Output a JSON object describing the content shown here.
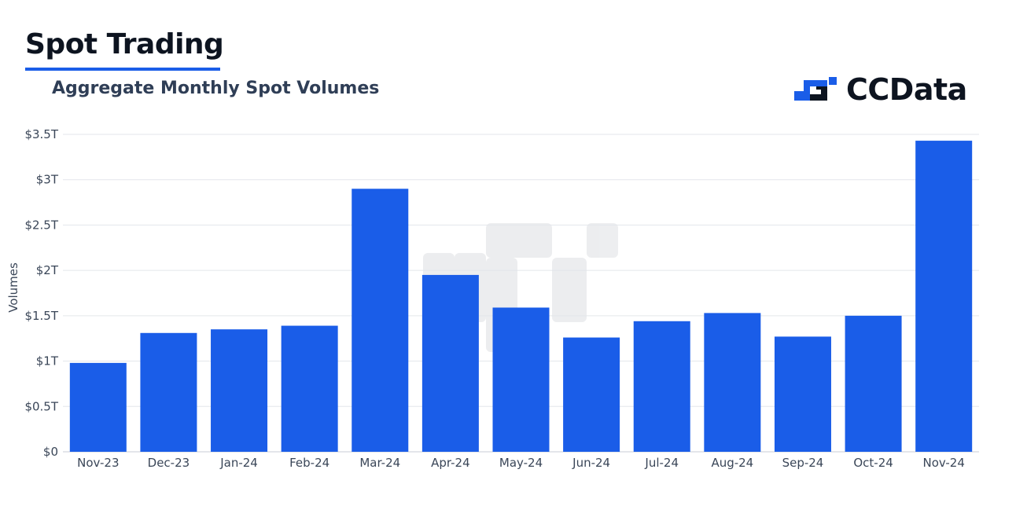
{
  "header": {
    "title": "Spot Trading"
  },
  "chart_title": "Aggregate Monthly Spot Volumes",
  "brand": {
    "name": "CCData",
    "logo_icon": "ccdata-logo-icon",
    "accent": "#1a5de8",
    "dark": "#0d1420"
  },
  "chart_data": {
    "type": "bar",
    "title": "Aggregate Monthly Spot Volumes",
    "xlabel": "",
    "ylabel": "Volumes",
    "categories": [
      "Nov-23",
      "Dec-23",
      "Jan-24",
      "Feb-24",
      "Mar-24",
      "Apr-24",
      "May-24",
      "Jun-24",
      "Jul-24",
      "Aug-24",
      "Sep-24",
      "Oct-24",
      "Nov-24"
    ],
    "values": [
      0.98,
      1.31,
      1.35,
      1.39,
      2.9,
      1.95,
      1.59,
      1.26,
      1.44,
      1.53,
      1.27,
      1.5,
      3.43
    ],
    "unit": "T",
    "ylim": [
      0,
      3.5
    ],
    "yticks": [
      0,
      0.5,
      1,
      1.5,
      2,
      2.5,
      3,
      3.5
    ],
    "ytick_labels": [
      "$0",
      "$0.5T",
      "$1T",
      "$1.5T",
      "$2T",
      "$2.5T",
      "$3T",
      "$3.5T"
    ],
    "bar_color": "#1a5de8",
    "grid": true,
    "legend": "none"
  }
}
